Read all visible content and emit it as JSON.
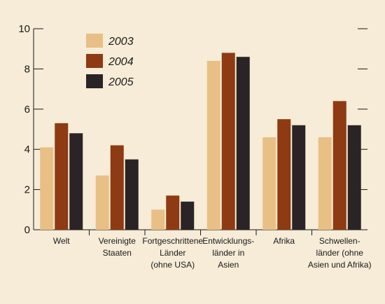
{
  "chart_data": {
    "type": "bar",
    "categories": [
      [
        "Welt"
      ],
      [
        "Vereinigte",
        "Staaten"
      ],
      [
        "Fortgeschrittene",
        "Länder",
        "(ohne USA)"
      ],
      [
        "Entwicklungs-",
        "länder in",
        "Asien"
      ],
      [
        "Afrika"
      ],
      [
        "Schwellen-",
        "länder (ohne",
        "Asien und Afrika)"
      ]
    ],
    "series": [
      {
        "name": "2003",
        "color": "#e8bf85",
        "values": [
          4.1,
          2.7,
          1.0,
          8.4,
          4.6,
          4.6
        ]
      },
      {
        "name": "2004",
        "color": "#8e3a12",
        "values": [
          5.3,
          4.2,
          1.7,
          8.8,
          5.5,
          6.4
        ]
      },
      {
        "name": "2005",
        "color": "#2b2426",
        "values": [
          4.8,
          3.5,
          1.4,
          8.6,
          5.2,
          5.2
        ]
      }
    ],
    "title": "",
    "xlabel": "",
    "ylabel": "",
    "ylim": [
      0,
      10
    ],
    "yticks": [
      "0",
      "2",
      "4",
      "6",
      "8",
      "10"
    ],
    "grid": false,
    "legend_position": "top-left",
    "background_color": "#f6ecd7"
  }
}
